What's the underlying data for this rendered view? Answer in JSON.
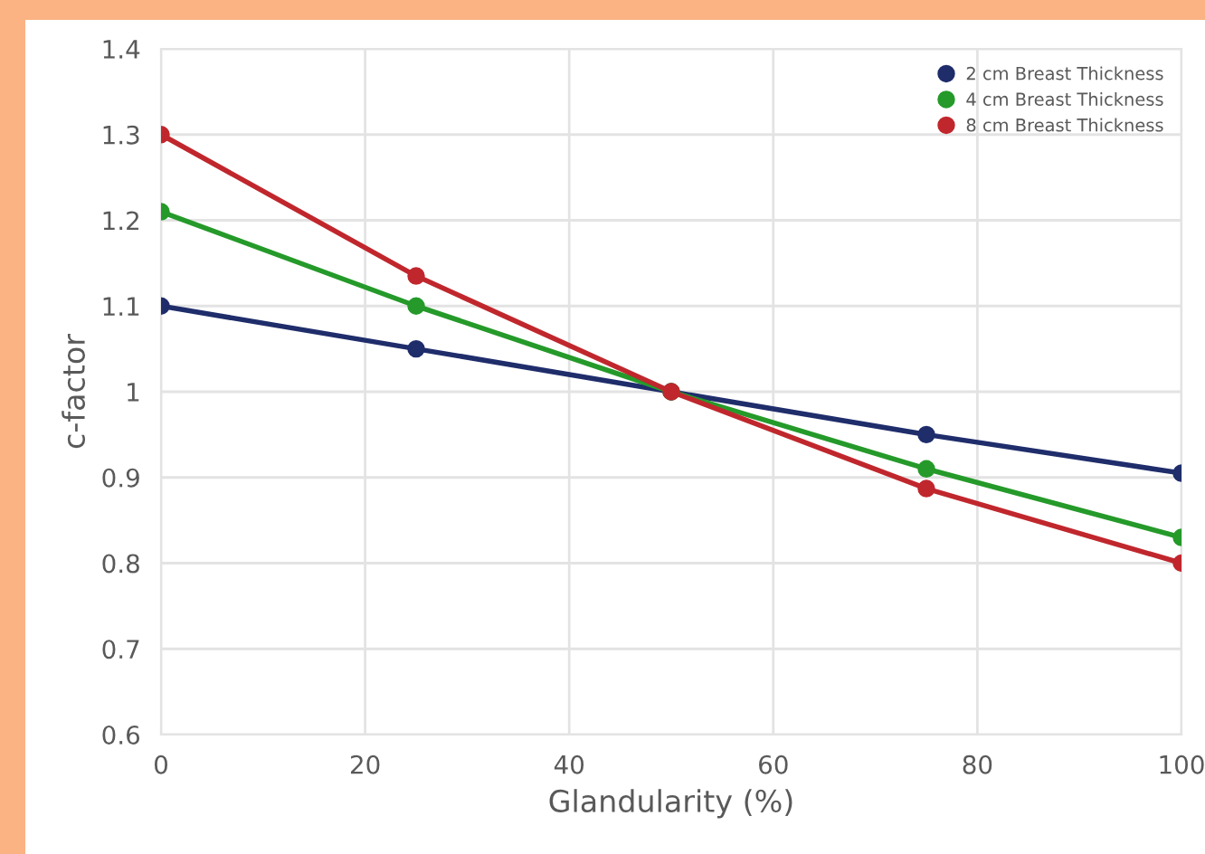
{
  "chart_data": {
    "type": "line",
    "xlabel": "Glandularity (%)",
    "ylabel": "c-factor",
    "x": [
      0,
      25,
      50,
      75,
      100
    ],
    "series": [
      {
        "name": "2 cm Breast Thickness",
        "color": "#1f2d6b",
        "values": [
          1.1,
          1.05,
          1.0,
          0.95,
          0.905
        ]
      },
      {
        "name": "4 cm Breast Thickness",
        "color": "#259a2a",
        "values": [
          1.21,
          1.1,
          1.0,
          0.91,
          0.83
        ]
      },
      {
        "name": "8 cm Breast Thickness",
        "color": "#c0272d",
        "values": [
          1.3,
          1.135,
          1.0,
          0.887,
          0.8
        ]
      }
    ],
    "xlim": [
      0,
      100
    ],
    "xticks": [
      0,
      20,
      40,
      60,
      80,
      100
    ],
    "ylim": [
      0.6,
      1.4
    ],
    "yticks": [
      {
        "value": 0.6,
        "label": "0.6"
      },
      {
        "value": 0.7,
        "label": "0.7"
      },
      {
        "value": 0.8,
        "label": "0.8"
      },
      {
        "value": 0.9,
        "label": "0.9"
      },
      {
        "value": 1.0,
        "label": "1"
      },
      {
        "value": 1.1,
        "label": "1.1"
      },
      {
        "value": 1.2,
        "label": "1.2"
      },
      {
        "value": 1.3,
        "label": "1.3"
      },
      {
        "value": 1.4,
        "label": "1.4"
      }
    ],
    "grid": true,
    "legend": "top right",
    "marker": "circle",
    "line_style": "solid"
  }
}
